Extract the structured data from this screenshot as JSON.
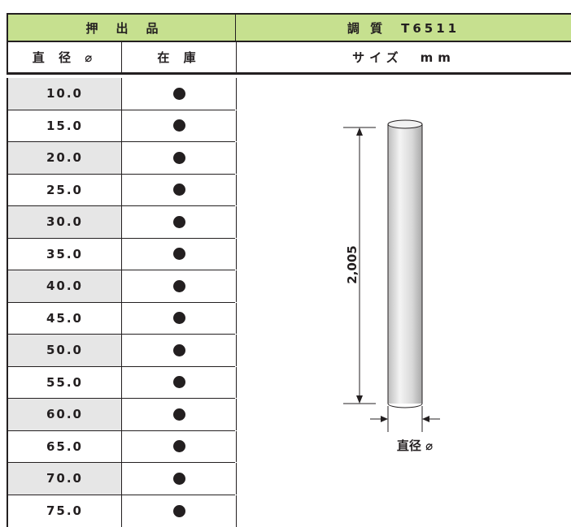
{
  "header": {
    "extruded_label": "押出品",
    "temper_label": "調 質　T6511"
  },
  "subheader": {
    "diameter_label": "直 径 ⌀",
    "stock_label": "在 庫",
    "size_label": "サイズ　mm"
  },
  "rows": [
    {
      "diameter": "10.0",
      "in_stock": true
    },
    {
      "diameter": "15.0",
      "in_stock": true
    },
    {
      "diameter": "20.0",
      "in_stock": true
    },
    {
      "diameter": "25.0",
      "in_stock": true
    },
    {
      "diameter": "30.0",
      "in_stock": true
    },
    {
      "diameter": "35.0",
      "in_stock": true
    },
    {
      "diameter": "40.0",
      "in_stock": true
    },
    {
      "diameter": "45.0",
      "in_stock": true
    },
    {
      "diameter": "50.0",
      "in_stock": true
    },
    {
      "diameter": "55.0",
      "in_stock": true
    },
    {
      "diameter": "60.0",
      "in_stock": true
    },
    {
      "diameter": "65.0",
      "in_stock": true
    },
    {
      "diameter": "70.0",
      "in_stock": true
    },
    {
      "diameter": "75.0",
      "in_stock": true
    }
  ],
  "diagram": {
    "length_label": "2,005",
    "diameter_caption": "直径 ⌀"
  },
  "colors": {
    "header_bg": "#c6e08f",
    "shade_bg": "#e6e6e6",
    "ink": "#231f20"
  }
}
